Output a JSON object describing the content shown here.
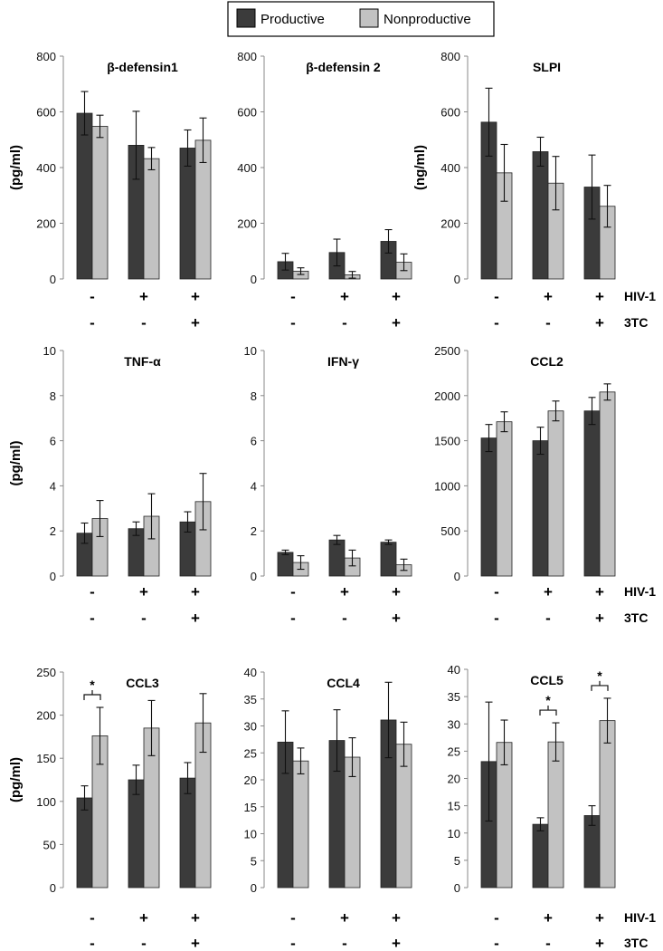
{
  "legend": {
    "productive": "Productive",
    "nonproductive": "Nonproductive"
  },
  "colors": {
    "productive": "#3b3b3b",
    "nonproductive": "#c2c2c2"
  },
  "conditions": {
    "hiv_label": "HIV-1",
    "tc_label": "3TC",
    "hiv": [
      "-",
      "+",
      "+"
    ],
    "tc": [
      "-",
      "-",
      "+"
    ]
  },
  "chart_data": [
    {
      "type": "bar",
      "title": "β-defensin1",
      "ylabel": "(pg/ml)",
      "ylim": [
        0,
        800
      ],
      "yticks": [
        0,
        200,
        400,
        600,
        800
      ],
      "series": [
        {
          "name": "Productive",
          "values": [
            595,
            480,
            470
          ],
          "errors": [
            78,
            122,
            65
          ]
        },
        {
          "name": "Nonproductive",
          "values": [
            548,
            432,
            498
          ],
          "errors": [
            40,
            40,
            80
          ]
        }
      ],
      "significant": []
    },
    {
      "type": "bar",
      "title": "β-defensin 2",
      "ylabel": "",
      "ylim": [
        0,
        800
      ],
      "yticks": [
        0,
        200,
        400,
        600,
        800
      ],
      "series": [
        {
          "name": "Productive",
          "values": [
            62,
            95,
            135
          ],
          "errors": [
            30,
            48,
            42
          ]
        },
        {
          "name": "Nonproductive",
          "values": [
            28,
            15,
            60
          ],
          "errors": [
            12,
            12,
            30
          ]
        }
      ],
      "significant": []
    },
    {
      "type": "bar",
      "title": "SLPI",
      "ylabel": "(ng/ml)",
      "ylim": [
        0,
        800
      ],
      "yticks": [
        0,
        200,
        400,
        600,
        800
      ],
      "series": [
        {
          "name": "Productive",
          "values": [
            563,
            457,
            330
          ],
          "errors": [
            122,
            52,
            115
          ]
        },
        {
          "name": "Nonproductive",
          "values": [
            381,
            344,
            261
          ],
          "errors": [
            102,
            96,
            75
          ]
        }
      ],
      "significant": []
    },
    {
      "type": "bar",
      "title": "TNF-α",
      "ylabel": "(pg/ml)",
      "ylim": [
        0,
        10
      ],
      "yticks": [
        0,
        2,
        4,
        6,
        8,
        10
      ],
      "series": [
        {
          "name": "Productive",
          "values": [
            1.9,
            2.1,
            2.4
          ],
          "errors": [
            0.45,
            0.3,
            0.45
          ]
        },
        {
          "name": "Nonproductive",
          "values": [
            2.55,
            2.65,
            3.3
          ],
          "errors": [
            0.8,
            1.0,
            1.25
          ]
        }
      ],
      "significant": []
    },
    {
      "type": "bar",
      "title": "IFN-γ",
      "ylabel": "",
      "ylim": [
        0,
        10
      ],
      "yticks": [
        0,
        2,
        4,
        6,
        8,
        10
      ],
      "series": [
        {
          "name": "Productive",
          "values": [
            1.05,
            1.6,
            1.5
          ],
          "errors": [
            0.1,
            0.2,
            0.1
          ]
        },
        {
          "name": "Nonproductive",
          "values": [
            0.6,
            0.8,
            0.5
          ],
          "errors": [
            0.3,
            0.35,
            0.25
          ]
        }
      ],
      "significant": []
    },
    {
      "type": "bar",
      "title": "CCL2",
      "ylabel": "",
      "ylim": [
        0,
        2500
      ],
      "yticks": [
        0,
        500,
        1000,
        1500,
        2000,
        2500
      ],
      "series": [
        {
          "name": "Productive",
          "values": [
            1530,
            1500,
            1830
          ],
          "errors": [
            150,
            150,
            150
          ]
        },
        {
          "name": "Nonproductive",
          "values": [
            1710,
            1830,
            2040
          ],
          "errors": [
            110,
            110,
            90
          ]
        }
      ],
      "significant": []
    },
    {
      "type": "bar",
      "title": "CCL3",
      "ylabel": "(pg/ml)",
      "ylim": [
        0,
        250
      ],
      "yticks": [
        0,
        50,
        100,
        150,
        200,
        250
      ],
      "series": [
        {
          "name": "Productive",
          "values": [
            104,
            125,
            127
          ],
          "errors": [
            14,
            17,
            18
          ]
        },
        {
          "name": "Nonproductive",
          "values": [
            176,
            185,
            191
          ],
          "errors": [
            33,
            32,
            34
          ]
        }
      ],
      "significant": [
        0
      ],
      "sig_label": "*"
    },
    {
      "type": "bar",
      "title": "CCL4",
      "ylabel": "",
      "ylim": [
        0,
        40
      ],
      "yticks": [
        0,
        5,
        10,
        15,
        20,
        25,
        30,
        35,
        40
      ],
      "series": [
        {
          "name": "Productive",
          "values": [
            27,
            27.3,
            31.1
          ],
          "errors": [
            5.8,
            5.7,
            7
          ]
        },
        {
          "name": "Nonproductive",
          "values": [
            23.5,
            24.2,
            26.6
          ],
          "errors": [
            2.4,
            3.6,
            4.1
          ]
        }
      ],
      "significant": []
    },
    {
      "type": "bar",
      "title": "CCL5",
      "ylabel": "",
      "ylim": [
        0,
        40
      ],
      "yticks": [
        0,
        5,
        10,
        15,
        20,
        25,
        30,
        35,
        40
      ],
      "series": [
        {
          "name": "Productive",
          "values": [
            23.1,
            11.6,
            13.2
          ],
          "errors": [
            10.9,
            1.2,
            1.8
          ]
        },
        {
          "name": "Nonproductive",
          "values": [
            26.6,
            26.7,
            30.6
          ],
          "errors": [
            4.1,
            3.5,
            4.1
          ]
        }
      ],
      "significant": [
        1,
        2
      ],
      "sig_label": "*"
    }
  ]
}
